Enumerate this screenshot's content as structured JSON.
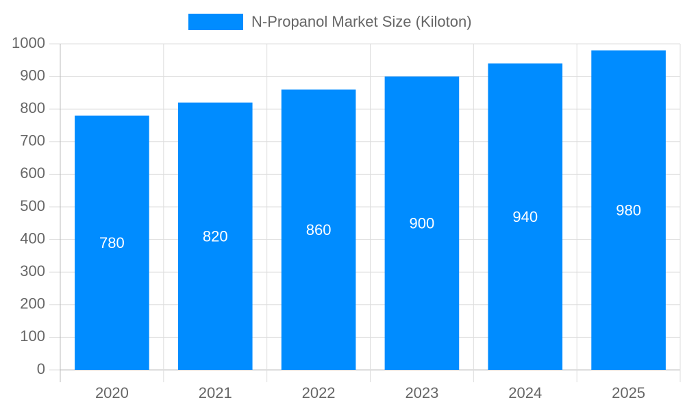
{
  "chart_data": {
    "type": "bar",
    "categories": [
      "2020",
      "2021",
      "2022",
      "2023",
      "2024",
      "2025"
    ],
    "series": [
      {
        "name": "N-Propanol Market Size (Kiloton)",
        "color": "#008cff",
        "values": [
          780,
          820,
          860,
          900,
          940,
          980
        ]
      }
    ],
    "ylim": [
      0,
      1000
    ],
    "yticks": [
      0,
      100,
      200,
      300,
      400,
      500,
      600,
      700,
      800,
      900,
      1000
    ],
    "grid": true,
    "legend": "top"
  }
}
